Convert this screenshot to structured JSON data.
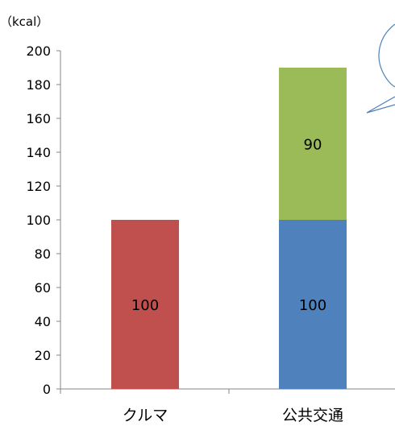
{
  "chart_data": {
    "type": "bar",
    "stacked": true,
    "unit_label": "（kcal）",
    "categories": [
      "クルマ",
      "公共交通"
    ],
    "series": [
      {
        "values": [
          100,
          100
        ],
        "colors": [
          "#c0504d",
          "#4f81bd"
        ],
        "data_labels": [
          "100",
          "100"
        ]
      },
      {
        "values": [
          0,
          90
        ],
        "colors": [
          "#9bbb59",
          "#9bbb59"
        ],
        "data_labels": [
          "",
          "90"
        ]
      }
    ],
    "ylim": [
      0,
      200
    ],
    "yticks": [
      "0",
      "20",
      "40",
      "60",
      "80",
      "100",
      "120",
      "140",
      "160",
      "180",
      "200"
    ],
    "grid": false,
    "legend": "none",
    "callout_color": "#4f81bd"
  }
}
